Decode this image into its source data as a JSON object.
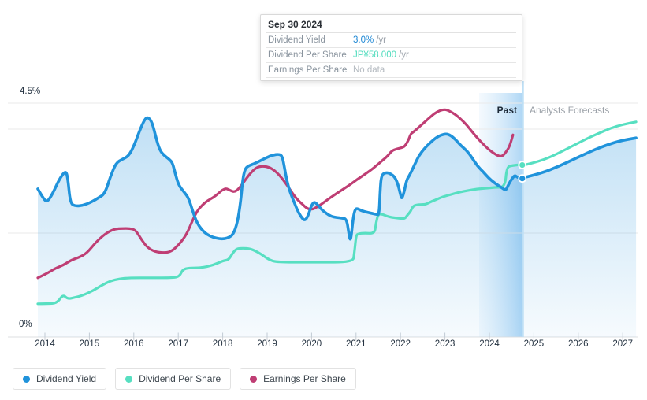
{
  "y_axis": {
    "top_label": "4.5%",
    "bottom_label": "0%"
  },
  "chart_annotations": {
    "past_label": "Past",
    "forecast_label": "Analysts Forecasts"
  },
  "tooltip": {
    "title": "Sep 30 2024",
    "rows": [
      {
        "label": "Dividend Yield",
        "value": "3.0%",
        "suffix": " /yr",
        "color": "#1e87d4"
      },
      {
        "label": "Dividend Per Share",
        "value": "JP¥58.000",
        "suffix": " /yr",
        "color": "#52dcbe"
      },
      {
        "label": "Earnings Per Share",
        "value": "No data",
        "suffix": "",
        "color": "#b4bac0"
      }
    ]
  },
  "legend": [
    {
      "label": "Dividend Yield",
      "color": "#2093db"
    },
    {
      "label": "Dividend Per Share",
      "color": "#57dfc1"
    },
    {
      "label": "Earnings Per Share",
      "color": "#bf3e74"
    }
  ],
  "chart_data": {
    "type": "area",
    "title": "Dividend history and forecast",
    "x_tick_labels": [
      "2014",
      "2015",
      "2016",
      "2017",
      "2018",
      "2019",
      "2020",
      "2021",
      "2022",
      "2023",
      "2024",
      "2025",
      "2026",
      "2027"
    ],
    "xlim": [
      2013.82,
      2027.32
    ],
    "ylim": [
      0,
      4.5
    ],
    "ylabel_unit": "%",
    "y_gridlines_pct": [
      0,
      2,
      4,
      4.5
    ],
    "grid": true,
    "legend_position": "bottom",
    "past_band_start_x": 2023.77,
    "past_boundary_x": 2024.74,
    "series": [
      {
        "name": "Earnings Per Share",
        "color": "#bf3e74",
        "fill": false,
        "region": "past",
        "points": [
          [
            2013.84,
            1.14
          ],
          [
            2014.02,
            1.21
          ],
          [
            2014.23,
            1.32
          ],
          [
            2014.41,
            1.38
          ],
          [
            2014.59,
            1.48
          ],
          [
            2014.76,
            1.53
          ],
          [
            2014.94,
            1.61
          ],
          [
            2015.12,
            1.8
          ],
          [
            2015.29,
            1.94
          ],
          [
            2015.44,
            2.03
          ],
          [
            2015.58,
            2.08
          ],
          [
            2015.74,
            2.09
          ],
          [
            2015.91,
            2.09
          ],
          [
            2016.04,
            2.06
          ],
          [
            2016.18,
            1.86
          ],
          [
            2016.32,
            1.71
          ],
          [
            2016.48,
            1.64
          ],
          [
            2016.66,
            1.62
          ],
          [
            2016.84,
            1.64
          ],
          [
            2017.03,
            1.79
          ],
          [
            2017.19,
            1.98
          ],
          [
            2017.32,
            2.24
          ],
          [
            2017.42,
            2.42
          ],
          [
            2017.53,
            2.53
          ],
          [
            2017.65,
            2.62
          ],
          [
            2017.78,
            2.68
          ],
          [
            2017.9,
            2.76
          ],
          [
            2017.99,
            2.83
          ],
          [
            2018.08,
            2.86
          ],
          [
            2018.17,
            2.82
          ],
          [
            2018.26,
            2.79
          ],
          [
            2018.36,
            2.85
          ],
          [
            2018.49,
            3.0
          ],
          [
            2018.61,
            3.14
          ],
          [
            2018.75,
            3.26
          ],
          [
            2018.89,
            3.29
          ],
          [
            2019.04,
            3.27
          ],
          [
            2019.16,
            3.21
          ],
          [
            2019.28,
            3.11
          ],
          [
            2019.41,
            2.97
          ],
          [
            2019.55,
            2.79
          ],
          [
            2019.67,
            2.65
          ],
          [
            2019.8,
            2.55
          ],
          [
            2019.9,
            2.47
          ],
          [
            2020.01,
            2.45
          ],
          [
            2020.12,
            2.5
          ],
          [
            2020.26,
            2.58
          ],
          [
            2020.4,
            2.67
          ],
          [
            2020.56,
            2.76
          ],
          [
            2020.72,
            2.85
          ],
          [
            2020.88,
            2.94
          ],
          [
            2021.02,
            3.03
          ],
          [
            2021.18,
            3.12
          ],
          [
            2021.33,
            3.21
          ],
          [
            2021.46,
            3.3
          ],
          [
            2021.61,
            3.41
          ],
          [
            2021.71,
            3.48
          ],
          [
            2021.8,
            3.58
          ],
          [
            2021.91,
            3.62
          ],
          [
            2022.02,
            3.64
          ],
          [
            2022.1,
            3.67
          ],
          [
            2022.18,
            3.79
          ],
          [
            2022.23,
            3.91
          ],
          [
            2022.3,
            3.95
          ],
          [
            2022.39,
            4.02
          ],
          [
            2022.51,
            4.11
          ],
          [
            2022.64,
            4.21
          ],
          [
            2022.76,
            4.3
          ],
          [
            2022.89,
            4.36
          ],
          [
            2023.0,
            4.38
          ],
          [
            2023.1,
            4.35
          ],
          [
            2023.22,
            4.29
          ],
          [
            2023.35,
            4.2
          ],
          [
            2023.49,
            4.08
          ],
          [
            2023.61,
            3.95
          ],
          [
            2023.73,
            3.83
          ],
          [
            2023.86,
            3.71
          ],
          [
            2023.98,
            3.61
          ],
          [
            2024.11,
            3.53
          ],
          [
            2024.21,
            3.48
          ],
          [
            2024.3,
            3.48
          ],
          [
            2024.39,
            3.58
          ],
          [
            2024.46,
            3.68
          ],
          [
            2024.53,
            3.89
          ]
        ]
      },
      {
        "name": "Dividend Per Share",
        "color": "#57dfc1",
        "fill": false,
        "region": "past",
        "points": [
          [
            2013.84,
            0.64
          ],
          [
            2014.05,
            0.64
          ],
          [
            2014.27,
            0.65
          ],
          [
            2014.41,
            0.82
          ],
          [
            2014.51,
            0.73
          ],
          [
            2014.67,
            0.76
          ],
          [
            2014.85,
            0.8
          ],
          [
            2015.08,
            0.89
          ],
          [
            2015.29,
            1.0
          ],
          [
            2015.47,
            1.08
          ],
          [
            2015.68,
            1.12
          ],
          [
            2015.91,
            1.14
          ],
          [
            2016.36,
            1.14
          ],
          [
            2016.89,
            1.14
          ],
          [
            2017.03,
            1.17
          ],
          [
            2017.1,
            1.3
          ],
          [
            2017.24,
            1.33
          ],
          [
            2017.51,
            1.33
          ],
          [
            2017.78,
            1.38
          ],
          [
            2018.01,
            1.47
          ],
          [
            2018.13,
            1.48
          ],
          [
            2018.22,
            1.61
          ],
          [
            2018.31,
            1.7
          ],
          [
            2018.45,
            1.71
          ],
          [
            2018.63,
            1.7
          ],
          [
            2018.84,
            1.61
          ],
          [
            2019.07,
            1.47
          ],
          [
            2019.28,
            1.44
          ],
          [
            2020.08,
            1.44
          ],
          [
            2020.93,
            1.44
          ],
          [
            2020.96,
            1.6
          ],
          [
            2021.0,
            1.94
          ],
          [
            2021.04,
            1.99
          ],
          [
            2021.2,
            2.0
          ],
          [
            2021.42,
            1.99
          ],
          [
            2021.45,
            2.2
          ],
          [
            2021.5,
            2.37
          ],
          [
            2021.6,
            2.36
          ],
          [
            2021.68,
            2.33
          ],
          [
            2021.8,
            2.3
          ],
          [
            2021.94,
            2.29
          ],
          [
            2022.09,
            2.27
          ],
          [
            2022.16,
            2.35
          ],
          [
            2022.23,
            2.42
          ],
          [
            2022.28,
            2.52
          ],
          [
            2022.39,
            2.55
          ],
          [
            2022.56,
            2.55
          ],
          [
            2022.65,
            2.59
          ],
          [
            2022.79,
            2.64
          ],
          [
            2022.95,
            2.7
          ],
          [
            2023.13,
            2.74
          ],
          [
            2023.33,
            2.79
          ],
          [
            2023.52,
            2.82
          ],
          [
            2023.72,
            2.85
          ],
          [
            2023.89,
            2.86
          ],
          [
            2024.12,
            2.88
          ],
          [
            2024.35,
            2.88
          ],
          [
            2024.39,
            3.27
          ],
          [
            2024.51,
            3.3
          ],
          [
            2024.74,
            3.32
          ]
        ]
      },
      {
        "name": "Dividend Per Share forecast",
        "color": "#57dfc1",
        "fill": false,
        "region": "forecast",
        "points": [
          [
            2024.74,
            3.3
          ],
          [
            2025.04,
            3.36
          ],
          [
            2025.4,
            3.47
          ],
          [
            2025.88,
            3.68
          ],
          [
            2026.2,
            3.82
          ],
          [
            2026.46,
            3.92
          ],
          [
            2026.73,
            4.02
          ],
          [
            2027.0,
            4.09
          ],
          [
            2027.3,
            4.14
          ]
        ]
      },
      {
        "name": "Dividend Yield",
        "color": "#2093db",
        "fill": true,
        "region": "past",
        "points": [
          [
            2013.84,
            2.85
          ],
          [
            2013.96,
            2.67
          ],
          [
            2014.05,
            2.59
          ],
          [
            2014.18,
            2.77
          ],
          [
            2014.32,
            3.03
          ],
          [
            2014.46,
            3.2
          ],
          [
            2014.51,
            3.09
          ],
          [
            2014.57,
            2.58
          ],
          [
            2014.67,
            2.52
          ],
          [
            2014.85,
            2.53
          ],
          [
            2015.03,
            2.59
          ],
          [
            2015.21,
            2.68
          ],
          [
            2015.35,
            2.76
          ],
          [
            2015.47,
            3.08
          ],
          [
            2015.6,
            3.35
          ],
          [
            2015.74,
            3.42
          ],
          [
            2015.88,
            3.48
          ],
          [
            2016.0,
            3.67
          ],
          [
            2016.13,
            3.97
          ],
          [
            2016.25,
            4.2
          ],
          [
            2016.32,
            4.23
          ],
          [
            2016.41,
            4.14
          ],
          [
            2016.5,
            3.83
          ],
          [
            2016.59,
            3.58
          ],
          [
            2016.7,
            3.48
          ],
          [
            2016.8,
            3.42
          ],
          [
            2016.87,
            3.35
          ],
          [
            2016.93,
            3.15
          ],
          [
            2017.01,
            2.92
          ],
          [
            2017.12,
            2.8
          ],
          [
            2017.23,
            2.68
          ],
          [
            2017.33,
            2.41
          ],
          [
            2017.42,
            2.2
          ],
          [
            2017.53,
            2.06
          ],
          [
            2017.65,
            1.97
          ],
          [
            2017.78,
            1.92
          ],
          [
            2017.92,
            1.89
          ],
          [
            2018.04,
            1.89
          ],
          [
            2018.15,
            1.92
          ],
          [
            2018.24,
            1.98
          ],
          [
            2018.33,
            2.2
          ],
          [
            2018.4,
            2.58
          ],
          [
            2018.45,
            3.03
          ],
          [
            2018.5,
            3.23
          ],
          [
            2018.57,
            3.29
          ],
          [
            2018.7,
            3.33
          ],
          [
            2018.84,
            3.39
          ],
          [
            2018.98,
            3.45
          ],
          [
            2019.12,
            3.5
          ],
          [
            2019.27,
            3.52
          ],
          [
            2019.34,
            3.48
          ],
          [
            2019.39,
            3.26
          ],
          [
            2019.44,
            3.02
          ],
          [
            2019.51,
            2.8
          ],
          [
            2019.6,
            2.61
          ],
          [
            2019.69,
            2.42
          ],
          [
            2019.78,
            2.29
          ],
          [
            2019.85,
            2.24
          ],
          [
            2019.92,
            2.33
          ],
          [
            2019.99,
            2.52
          ],
          [
            2020.06,
            2.61
          ],
          [
            2020.15,
            2.53
          ],
          [
            2020.24,
            2.44
          ],
          [
            2020.33,
            2.38
          ],
          [
            2020.44,
            2.32
          ],
          [
            2020.56,
            2.3
          ],
          [
            2020.68,
            2.29
          ],
          [
            2020.79,
            2.27
          ],
          [
            2020.84,
            1.97
          ],
          [
            2020.88,
            1.83
          ],
          [
            2020.93,
            2.26
          ],
          [
            2020.97,
            2.44
          ],
          [
            2021.02,
            2.48
          ],
          [
            2021.12,
            2.43
          ],
          [
            2021.25,
            2.4
          ],
          [
            2021.36,
            2.38
          ],
          [
            2021.46,
            2.36
          ],
          [
            2021.52,
            2.35
          ],
          [
            2021.54,
            2.8
          ],
          [
            2021.57,
            3.12
          ],
          [
            2021.68,
            3.17
          ],
          [
            2021.78,
            3.14
          ],
          [
            2021.87,
            3.08
          ],
          [
            2021.94,
            2.95
          ],
          [
            2022.0,
            2.74
          ],
          [
            2022.03,
            2.65
          ],
          [
            2022.09,
            2.82
          ],
          [
            2022.14,
            3.03
          ],
          [
            2022.21,
            3.12
          ],
          [
            2022.32,
            3.32
          ],
          [
            2022.42,
            3.5
          ],
          [
            2022.55,
            3.64
          ],
          [
            2022.67,
            3.74
          ],
          [
            2022.79,
            3.83
          ],
          [
            2022.92,
            3.89
          ],
          [
            2023.03,
            3.91
          ],
          [
            2023.13,
            3.88
          ],
          [
            2023.24,
            3.8
          ],
          [
            2023.36,
            3.68
          ],
          [
            2023.49,
            3.59
          ],
          [
            2023.61,
            3.45
          ],
          [
            2023.73,
            3.29
          ],
          [
            2023.86,
            3.18
          ],
          [
            2023.98,
            3.06
          ],
          [
            2024.11,
            2.97
          ],
          [
            2024.21,
            2.91
          ],
          [
            2024.32,
            2.85
          ],
          [
            2024.37,
            2.82
          ],
          [
            2024.44,
            2.95
          ],
          [
            2024.51,
            3.05
          ],
          [
            2024.57,
            3.11
          ],
          [
            2024.62,
            3.08
          ],
          [
            2024.69,
            3.05
          ],
          [
            2024.74,
            3.05
          ]
        ]
      },
      {
        "name": "Dividend Yield forecast",
        "color": "#2093db",
        "fill": true,
        "region": "forecast",
        "points": [
          [
            2024.74,
            3.06
          ],
          [
            2025.13,
            3.14
          ],
          [
            2025.58,
            3.29
          ],
          [
            2026.02,
            3.47
          ],
          [
            2026.46,
            3.64
          ],
          [
            2026.9,
            3.77
          ],
          [
            2027.3,
            3.83
          ]
        ]
      }
    ],
    "markers": [
      {
        "series": "Dividend Per Share",
        "x": 2024.74,
        "y": 3.31,
        "color": "#57dfc1"
      },
      {
        "series": "Dividend Yield",
        "x": 2024.74,
        "y": 3.05,
        "color": "#2093db"
      }
    ]
  }
}
